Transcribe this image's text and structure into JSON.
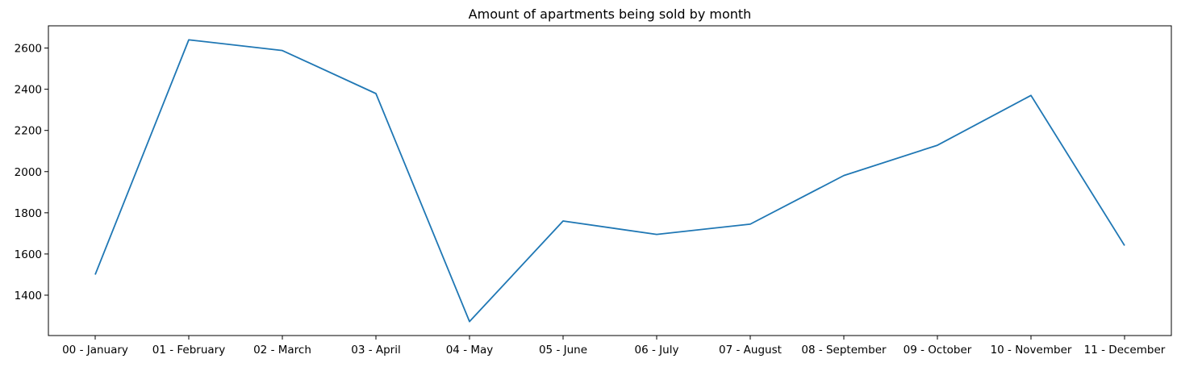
{
  "chart_data": {
    "type": "line",
    "title": "Amount of apartments being sold by month",
    "xlabel": "",
    "ylabel": "",
    "categories": [
      "00 - January",
      "01 - February",
      "02 - March",
      "03 - April",
      "04 - May",
      "05 - June",
      "06 - July",
      "07 - August",
      "08 - September",
      "09 - October",
      "10 - November",
      "11 - December"
    ],
    "series": [
      {
        "values": [
          1500,
          2640,
          2588,
          2379,
          1272,
          1760,
          1695,
          1745,
          1981,
          2128,
          2370,
          1641
        ],
        "color": "#1f77b4"
      }
    ],
    "yticks": [
      1400,
      1600,
      1800,
      2000,
      2200,
      2400,
      2600
    ],
    "ylim": [
      1204,
      2708
    ],
    "grid": false,
    "legend": "none"
  }
}
